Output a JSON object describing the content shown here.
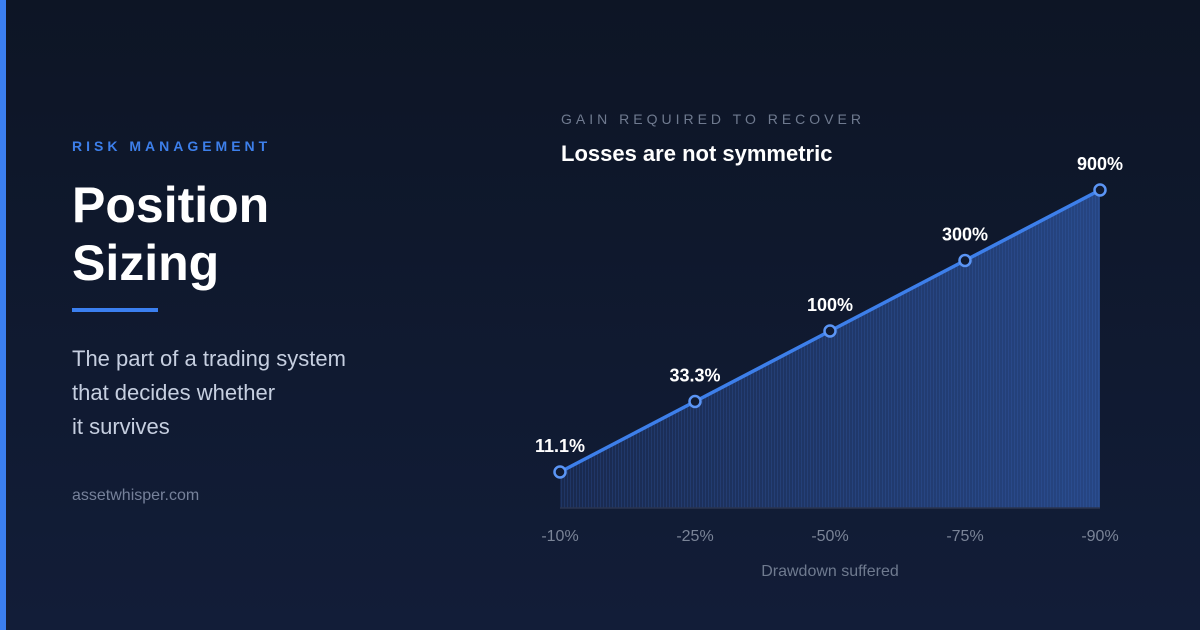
{
  "eyebrow": "RISK MANAGEMENT",
  "title_line1": "Position",
  "title_line2": "Sizing",
  "subtitle_lines": [
    "The part of a trading system",
    "that decides whether",
    "it survives"
  ],
  "site": "assetwhisper.com",
  "chart_kicker": "GAIN REQUIRED TO RECOVER",
  "chart_title": "Losses are not symmetric",
  "colors": {
    "accent": "#3b7ff0",
    "background": "#0f182b",
    "line": "#3d7fea"
  },
  "chart_data": {
    "type": "area",
    "title": "Losses are not symmetric",
    "subtitle": "GAIN REQUIRED TO RECOVER",
    "xlabel": "Drawdown suffered",
    "ylabel": "",
    "categories": [
      "-10%",
      "-25%",
      "-50%",
      "-75%",
      "-90%"
    ],
    "values": [
      11.1,
      33.3,
      100,
      300,
      900
    ],
    "data_labels": [
      "11.1%",
      "33.3%",
      "100%",
      "300%",
      "900%"
    ],
    "scale": "log",
    "grid": false
  }
}
